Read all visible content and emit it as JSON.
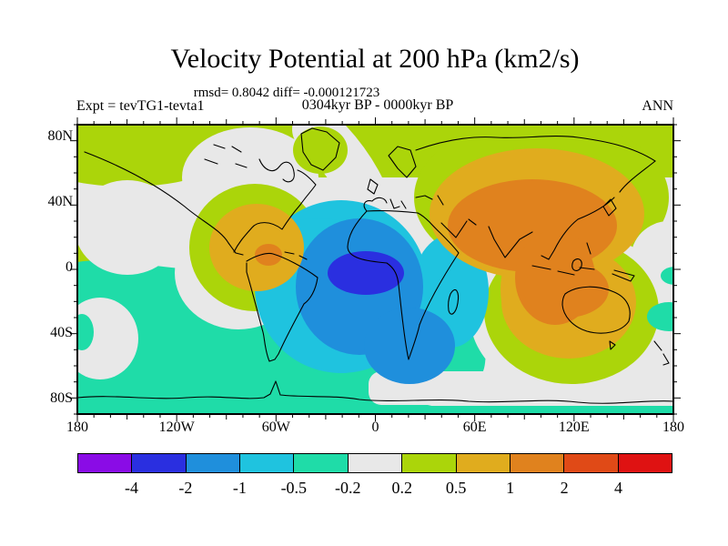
{
  "header": {
    "title": "Velocity Potential at 200 hPa (km2/s)",
    "stats_line": "rmsd= 0.8042 diff= -0.000121723",
    "period_line": "0304kyr BP - 0000kyr BP",
    "experiment_label": "Expt = tevTG1-tevta1",
    "season_label": "ANN"
  },
  "axes": {
    "lat_tick_labels": [
      "80N",
      "40N",
      "0",
      "40S",
      "80S"
    ],
    "lon_tick_labels": [
      "180",
      "120W",
      "60W",
      "0",
      "60E",
      "120E",
      "180"
    ]
  },
  "colorbar": {
    "boundary_labels": [
      "-4",
      "-2",
      "-1",
      "-0.5",
      "-0.2",
      "0.2",
      "0.5",
      "1",
      "2",
      "4"
    ],
    "segment_colors": [
      "#8A0CE6",
      "#2A2FE0",
      "#1F8FDC",
      "#1FC3DF",
      "#1FDCA8",
      "#E8E8E8",
      "#ABD50A",
      "#E0AC1E",
      "#E0821E",
      "#E04A17",
      "#DF1212"
    ]
  },
  "chart_data": {
    "type": "heatmap",
    "subtype": "filled_contour_world_map",
    "title": "Velocity Potential at 200 hPa (km2/s)",
    "units": "km2/s",
    "season": "ANN",
    "experiment": "tevTG1-tevta1",
    "difference_of": "0304kyr BP - 0000kyr BP",
    "rmsd": 0.8042,
    "diff": -0.000121723,
    "lon_range": [
      -180,
      180
    ],
    "lat_range": [
      -90,
      90
    ],
    "contour_levels": [
      -4,
      -2,
      -1,
      -0.5,
      -0.2,
      0.2,
      0.5,
      1,
      2,
      4
    ],
    "palette": [
      "#8A0CE6",
      "#2A2FE0",
      "#1F8FDC",
      "#1FC3DF",
      "#1FDCA8",
      "#E8E8E8",
      "#ABD50A",
      "#E0AC1E",
      "#E0821E",
      "#E04A17",
      "#DF1212"
    ],
    "features": [
      {
        "region": "tropical Atlantic / West Africa",
        "lon": -8,
        "lat": -3,
        "range": "-4 to -2",
        "description": "strongest negative center (deep blue core)"
      },
      {
        "region": "South Atlantic and eastern South America / southern Africa",
        "range": "-2 to -0.5"
      },
      {
        "region": "South Pacific, Southern Ocean, Caribbean / North Atlantic",
        "range": "-0.5 to -0.2"
      },
      {
        "region": "South / Central Asia",
        "lon": 80,
        "lat": 25,
        "range": "1 to 2",
        "description": "strongest positive center over Asia"
      },
      {
        "region": "Maritime Continent / northwest Australia",
        "lon": 120,
        "lat": -15,
        "range": "1 to 2"
      },
      {
        "region": "eastern tropical Pacific",
        "lon": -113,
        "lat": 0,
        "range": "small 1-2 core inside 0.5-1 band"
      },
      {
        "region": "northern high latitudes (background)",
        "range": "0.2 to 0.5"
      },
      {
        "region": "North America, NE Pacific, Europe / NE Atlantic, dateline, Antarctica east",
        "range": "-0.2 to 0.2 neutral"
      }
    ]
  }
}
